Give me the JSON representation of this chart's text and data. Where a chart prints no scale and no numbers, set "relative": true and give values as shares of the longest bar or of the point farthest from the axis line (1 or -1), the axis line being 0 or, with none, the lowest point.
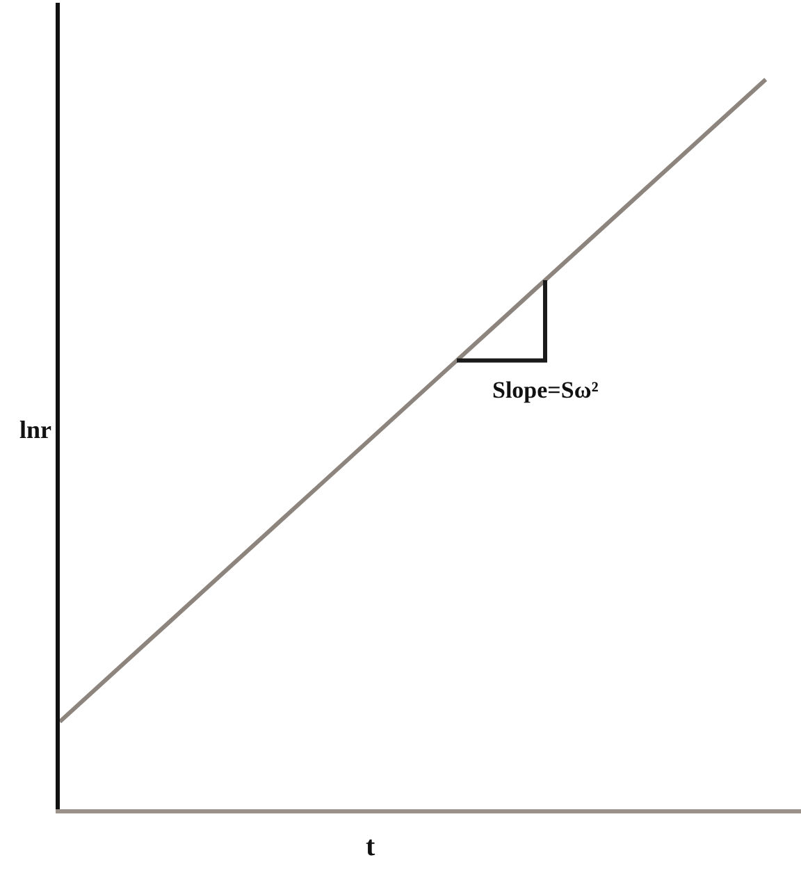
{
  "chart_data": {
    "type": "line",
    "xlabel": "t",
    "ylabel": "lnr",
    "relative": true,
    "marker": "none",
    "line_style": "solid",
    "categories": [
      null,
      null,
      null,
      null,
      null,
      null,
      null,
      null,
      null,
      null,
      null,
      null,
      null,
      null,
      null,
      null,
      null
    ],
    "series": [
      {
        "color": "#8c847d",
        "values": [
          0.12,
          0.175,
          0.23,
          0.285,
          0.34,
          0.395,
          0.45,
          0.505,
          0.56,
          0.615,
          0.67,
          0.725,
          0.78,
          0.835,
          0.89,
          0.945,
          1.0
        ]
      },
      {
        "type": "step",
        "color": "#1a1a1a",
        "values": [
          null,
          null,
          null,
          null,
          null,
          null,
          null,
          null,
          null,
          0.615,
          0.615,
          0.725,
          null,
          null,
          null,
          null,
          null
        ]
      }
    ],
    "annotations": [
      "Slope=Sω²"
    ]
  }
}
